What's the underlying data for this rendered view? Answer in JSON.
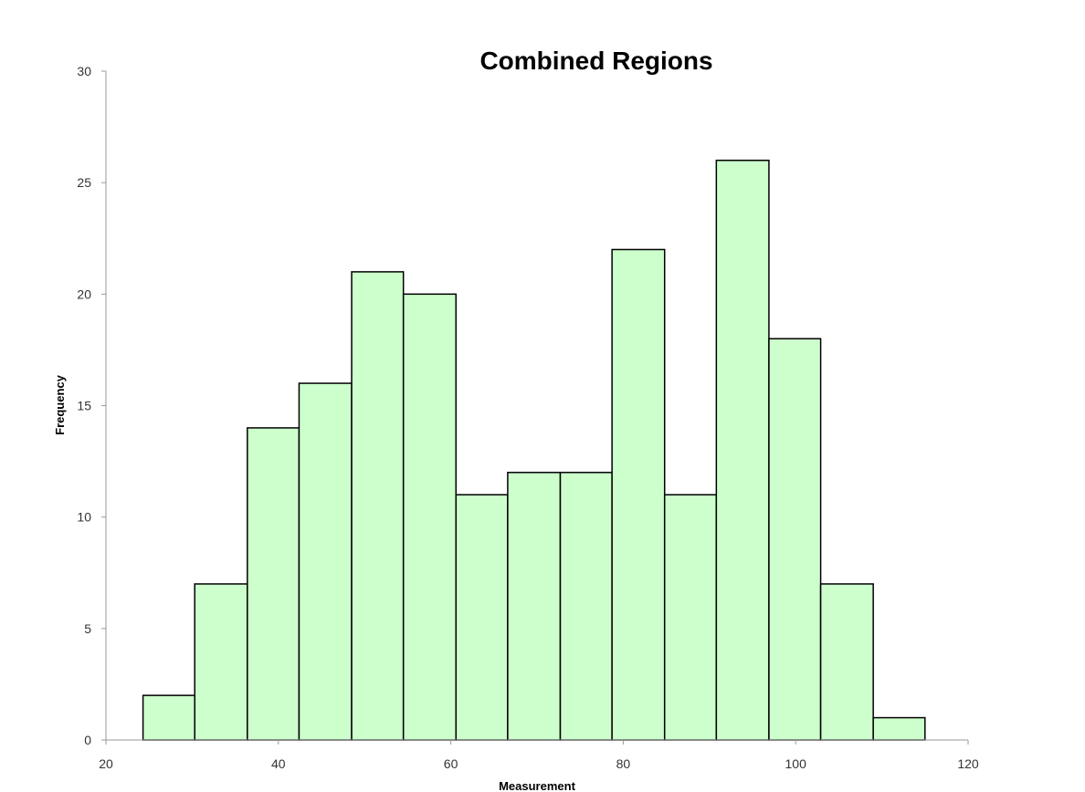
{
  "chart_data": {
    "type": "bar",
    "title": "Combined Regions",
    "xlabel": "Measurement",
    "ylabel": "Frequency",
    "xlim": [
      20,
      120
    ],
    "ylim": [
      0,
      30
    ],
    "x_ticks": [
      "20",
      "40",
      "60",
      "80",
      "100",
      "120"
    ],
    "y_ticks": [
      "0",
      "5",
      "10",
      "15",
      "20",
      "25",
      "30"
    ],
    "bins": [
      {
        "start": 24.3,
        "end": 30.3,
        "value": 2
      },
      {
        "start": 30.3,
        "end": 36.4,
        "value": 7
      },
      {
        "start": 36.4,
        "end": 42.4,
        "value": 14
      },
      {
        "start": 42.4,
        "end": 48.5,
        "value": 16
      },
      {
        "start": 48.5,
        "end": 54.5,
        "value": 21
      },
      {
        "start": 54.5,
        "end": 60.6,
        "value": 20
      },
      {
        "start": 60.6,
        "end": 66.6,
        "value": 11
      },
      {
        "start": 66.6,
        "end": 72.7,
        "value": 12
      },
      {
        "start": 72.7,
        "end": 78.7,
        "value": 12
      },
      {
        "start": 78.7,
        "end": 84.8,
        "value": 22
      },
      {
        "start": 84.8,
        "end": 90.8,
        "value": 11
      },
      {
        "start": 90.8,
        "end": 96.9,
        "value": 26
      },
      {
        "start": 96.9,
        "end": 102.9,
        "value": 18
      },
      {
        "start": 102.9,
        "end": 109.0,
        "value": 7
      },
      {
        "start": 109.0,
        "end": 115.0,
        "value": 1
      }
    ],
    "grid": false,
    "legend": "none",
    "bar_color": "#ccffcc",
    "bar_edge_color": "#000000"
  }
}
